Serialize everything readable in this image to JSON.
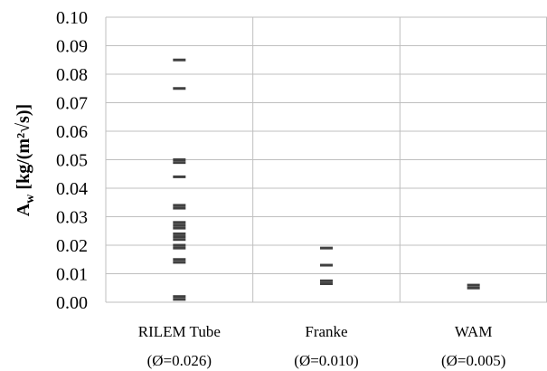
{
  "chart_data": {
    "type": "scatter",
    "marker": "dash",
    "categories": [
      "RILEM Tube",
      "Franke",
      "WAM"
    ],
    "category_notes": [
      "(Ø=0.026)",
      "(Ø=0.010)",
      "(Ø=0.005)"
    ],
    "series": [
      {
        "values": [
          [
            0.085,
            0.075,
            0.05,
            0.049,
            0.044,
            0.034,
            0.033,
            0.028,
            0.027,
            0.026,
            0.024,
            0.023,
            0.022,
            0.02,
            0.019,
            0.015,
            0.014,
            0.002,
            0.001
          ],
          [
            0.019,
            0.013,
            0.0075,
            0.0065
          ],
          [
            0.006,
            0.005
          ]
        ]
      }
    ],
    "ylabel": {
      "main": "A",
      "sub": "w",
      "rest": " [kg/(m²√s)]"
    },
    "ylim": [
      0.0,
      0.1
    ],
    "yticks": [
      "0.00",
      "0.01",
      "0.02",
      "0.03",
      "0.04",
      "0.05",
      "0.06",
      "0.07",
      "0.08",
      "0.09",
      "0.10"
    ],
    "grid": true,
    "colors": {
      "marker": "#404040",
      "grid": "#bfbfbf",
      "axis": "#a6a6a6",
      "text": "#000000"
    }
  }
}
